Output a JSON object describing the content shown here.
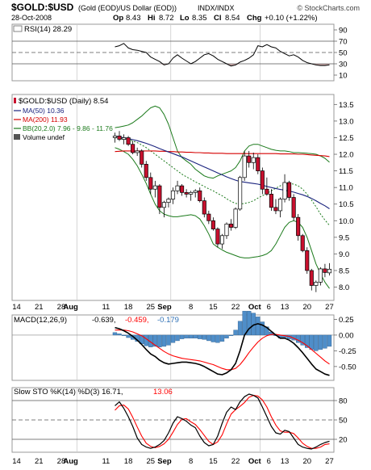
{
  "header": {
    "symbol": "$GOLD:$USD",
    "description": "(Gold (EOD)/US Dollar (EOD))",
    "exchange": "INDX/INDX",
    "watermark": "© StockCharts.com",
    "date": "28-Oct-2008",
    "op_label": "Op",
    "op": "8.43",
    "hi_label": "Hi",
    "hi": "8.72",
    "lo_label": "Lo",
    "lo": "8.35",
    "cl_label": "Cl",
    "cl": "8.54",
    "chg_label": "Chg",
    "chg": "+0.10 (+1.22%)"
  },
  "colors": {
    "frame": "#999999",
    "grid": "#cccccc",
    "up": "#ffffff",
    "down": "#c8102e",
    "ma50": "#1a237e",
    "ma200": "#d50000",
    "bb": "#1b7a1b",
    "macd": "#000000",
    "signal": "#ff0000",
    "hist": "#4f8ec9",
    "rsi_fill": "#b79a9a",
    "sto_k": "#000000",
    "sto_d": "#ff0000"
  },
  "chart_data": [
    {
      "type": "line",
      "name": "rsi",
      "legend": "RSI(14) 28.29",
      "ylim": [
        0,
        100
      ],
      "yticks": [
        "90",
        "70",
        "50",
        "30",
        "10"
      ],
      "ytick_values": [
        90,
        70,
        50,
        30,
        10
      ],
      "ref_lines": [
        70,
        50,
        30
      ],
      "values": [
        60,
        62,
        66,
        58,
        55,
        54,
        52,
        50,
        42,
        38,
        34,
        28,
        30,
        40,
        46,
        40,
        35,
        30,
        34,
        40,
        46,
        48,
        44,
        38,
        34,
        30,
        26,
        28,
        33,
        36,
        40,
        46,
        62,
        60,
        64,
        60,
        58,
        52,
        48,
        44,
        46,
        42,
        36,
        32,
        30,
        28,
        27,
        27,
        28
      ]
    },
    {
      "type": "candlestick",
      "name": "price",
      "legend": [
        "$GOLD:$USD (Daily) 8.54",
        "MA(50) 10.36",
        "MA(200) 11.93",
        "BB(20,2.0) 7.96 - 9.86 - 11.76",
        "Volume undef"
      ],
      "ylim": [
        7.6,
        13.8
      ],
      "yticks": [
        "13.5",
        "13.0",
        "12.5",
        "12.0",
        "11.5",
        "11.0",
        "10.5",
        "10.0",
        "9.5",
        "9.0",
        "8.5",
        "8.0"
      ],
      "ytick_values": [
        13.5,
        13.0,
        12.5,
        12.0,
        11.5,
        11.0,
        10.5,
        10.0,
        9.5,
        9.0,
        8.5,
        8.0
      ],
      "ohlc": [
        [
          12.5,
          12.65,
          12.35,
          12.55
        ],
        [
          12.55,
          12.7,
          12.4,
          12.45
        ],
        [
          12.45,
          12.6,
          12.3,
          12.5
        ],
        [
          12.5,
          12.55,
          12.25,
          12.3
        ],
        [
          12.3,
          12.4,
          12.0,
          12.05
        ],
        [
          12.05,
          12.2,
          11.95,
          12.1
        ],
        [
          12.1,
          12.15,
          11.6,
          11.7
        ],
        [
          11.7,
          11.8,
          11.2,
          11.3
        ],
        [
          11.3,
          11.45,
          10.8,
          10.95
        ],
        [
          10.95,
          11.2,
          10.7,
          11.05
        ],
        [
          11.05,
          11.1,
          10.2,
          10.4
        ],
        [
          10.4,
          10.6,
          10.1,
          10.55
        ],
        [
          10.55,
          10.7,
          10.4,
          10.65
        ],
        [
          10.65,
          11.0,
          10.5,
          10.9
        ],
        [
          10.9,
          11.2,
          10.8,
          11.05
        ],
        [
          11.05,
          11.1,
          10.75,
          10.85
        ],
        [
          10.85,
          10.95,
          10.7,
          10.8
        ],
        [
          10.8,
          10.9,
          10.6,
          10.85
        ],
        [
          10.85,
          10.95,
          10.7,
          10.9
        ],
        [
          10.9,
          11.0,
          10.55,
          10.6
        ],
        [
          10.6,
          10.7,
          10.1,
          10.2
        ],
        [
          10.2,
          10.3,
          9.9,
          10.0
        ],
        [
          10.0,
          10.1,
          9.7,
          9.75
        ],
        [
          9.75,
          9.8,
          9.2,
          9.3
        ],
        [
          9.3,
          9.6,
          9.15,
          9.55
        ],
        [
          9.55,
          9.95,
          9.45,
          9.9
        ],
        [
          9.9,
          10.05,
          9.7,
          9.8
        ],
        [
          9.8,
          10.4,
          9.75,
          10.35
        ],
        [
          10.35,
          11.35,
          10.3,
          11.3
        ],
        [
          11.3,
          12.1,
          11.2,
          11.95
        ],
        [
          11.95,
          12.1,
          11.6,
          11.75
        ],
        [
          11.75,
          12.05,
          11.55,
          11.9
        ],
        [
          11.9,
          12.0,
          11.4,
          11.5
        ],
        [
          11.5,
          11.6,
          10.8,
          10.95
        ],
        [
          10.95,
          11.3,
          10.75,
          10.8
        ],
        [
          10.8,
          10.95,
          10.3,
          10.4
        ],
        [
          10.4,
          10.65,
          10.2,
          10.3
        ],
        [
          10.3,
          10.7,
          10.1,
          10.65
        ],
        [
          10.65,
          11.4,
          10.55,
          11.15
        ],
        [
          11.15,
          11.2,
          10.6,
          10.7
        ],
        [
          10.7,
          10.8,
          10.0,
          10.1
        ],
        [
          10.1,
          10.2,
          9.4,
          9.55
        ],
        [
          9.55,
          9.6,
          9.05,
          9.1
        ],
        [
          9.1,
          9.2,
          8.4,
          8.5
        ],
        [
          8.5,
          8.55,
          7.9,
          8.05
        ],
        [
          8.05,
          8.2,
          7.85,
          8.15
        ],
        [
          8.15,
          8.6,
          8.05,
          8.55
        ],
        [
          8.55,
          8.7,
          8.3,
          8.44
        ],
        [
          8.43,
          8.72,
          8.35,
          8.54
        ]
      ],
      "ma50": [
        12.55,
        12.52,
        12.5,
        12.47,
        12.44,
        12.41,
        12.37,
        12.33,
        12.28,
        12.23,
        12.17,
        12.12,
        12.07,
        12.02,
        11.97,
        11.92,
        11.86,
        11.8,
        11.74,
        11.68,
        11.62,
        11.56,
        11.5,
        11.44,
        11.38,
        11.32,
        11.27,
        11.22,
        11.18,
        11.16,
        11.14,
        11.12,
        11.1,
        11.07,
        11.03,
        11.0,
        10.97,
        10.94,
        10.92,
        10.89,
        10.86,
        10.82,
        10.78,
        10.73,
        10.67,
        10.6,
        10.52,
        10.45,
        10.36
      ],
      "ma200": [
        12.08,
        12.09,
        12.1,
        12.1,
        12.1,
        12.1,
        12.1,
        12.1,
        12.1,
        12.1,
        12.09,
        12.09,
        12.08,
        12.08,
        12.07,
        12.07,
        12.06,
        12.06,
        12.05,
        12.05,
        12.04,
        12.04,
        12.03,
        12.03,
        12.03,
        12.02,
        12.02,
        12.02,
        12.02,
        12.02,
        12.02,
        12.02,
        12.02,
        12.02,
        12.02,
        12.02,
        12.02,
        12.01,
        12.01,
        12.01,
        12.01,
        12.0,
        12.0,
        11.99,
        11.98,
        11.97,
        11.96,
        11.95,
        11.93
      ],
      "bb_upper": [
        12.8,
        12.82,
        12.85,
        12.88,
        12.95,
        13.05,
        13.15,
        13.28,
        13.4,
        13.45,
        13.4,
        13.2,
        12.9,
        12.5,
        12.1,
        11.9,
        11.8,
        11.7,
        11.55,
        11.45,
        11.35,
        11.3,
        11.28,
        11.35,
        11.4,
        11.45,
        11.5,
        11.6,
        11.8,
        12.1,
        12.25,
        12.3,
        12.3,
        12.25,
        12.2,
        12.15,
        12.12,
        12.1,
        12.1,
        12.08,
        12.05,
        12.05,
        12.04,
        12.03,
        12.02,
        12.0,
        11.95,
        11.88,
        11.76
      ],
      "bb_mid": [
        12.5,
        12.48,
        12.46,
        12.44,
        12.4,
        12.35,
        12.28,
        12.2,
        12.1,
        12.0,
        11.9,
        11.8,
        11.7,
        11.6,
        11.5,
        11.4,
        11.32,
        11.25,
        11.17,
        11.1,
        11.03,
        10.96,
        10.9,
        10.82,
        10.75,
        10.66,
        10.58,
        10.52,
        10.5,
        10.52,
        10.55,
        10.6,
        10.68,
        10.75,
        10.82,
        10.9,
        10.98,
        11.05,
        11.1,
        11.12,
        11.1,
        11.05,
        10.95,
        10.8,
        10.62,
        10.42,
        10.2,
        10.02,
        9.86
      ],
      "bb_lower": [
        12.2,
        12.15,
        12.08,
        12.0,
        11.85,
        11.65,
        11.4,
        11.12,
        10.8,
        10.5,
        10.3,
        10.2,
        10.15,
        10.12,
        10.12,
        10.14,
        10.16,
        10.18,
        10.15,
        10.05,
        9.85,
        9.6,
        9.3,
        9.2,
        9.12,
        9.05,
        9.0,
        8.95,
        8.9,
        8.88,
        8.88,
        8.9,
        8.92,
        8.95,
        9.0,
        9.1,
        9.3,
        9.55,
        9.8,
        9.95,
        10.0,
        9.95,
        9.8,
        9.5,
        9.1,
        8.7,
        8.4,
        8.15,
        7.96
      ]
    },
    {
      "type": "line",
      "name": "macd",
      "legend_main": "MACD(12,26,9)",
      "legend_macd": "-0.639,",
      "legend_signal": "-0.459,",
      "legend_hist": "-0.179",
      "ylim": [
        -0.72,
        0.32
      ],
      "yticks": [
        "0.25",
        "0.00",
        "-0.25",
        "-0.50"
      ],
      "ytick_values": [
        0.25,
        0.0,
        -0.25,
        -0.5
      ],
      "macd": [
        0.12,
        0.1,
        0.07,
        0.03,
        -0.02,
        -0.08,
        -0.15,
        -0.23,
        -0.3,
        -0.34,
        -0.4,
        -0.44,
        -0.46,
        -0.45,
        -0.44,
        -0.43,
        -0.43,
        -0.44,
        -0.45,
        -0.47,
        -0.5,
        -0.54,
        -0.58,
        -0.62,
        -0.63,
        -0.6,
        -0.55,
        -0.45,
        -0.25,
        0.0,
        0.1,
        0.16,
        0.18,
        0.16,
        0.12,
        0.06,
        0.0,
        -0.05,
        -0.05,
        -0.08,
        -0.13,
        -0.2,
        -0.28,
        -0.37,
        -0.46,
        -0.54,
        -0.58,
        -0.62,
        -0.64
      ],
      "signal": [
        0.08,
        0.08,
        0.08,
        0.07,
        0.05,
        0.02,
        -0.01,
        -0.06,
        -0.11,
        -0.16,
        -0.21,
        -0.26,
        -0.3,
        -0.33,
        -0.35,
        -0.37,
        -0.38,
        -0.39,
        -0.4,
        -0.41,
        -0.43,
        -0.45,
        -0.47,
        -0.5,
        -0.53,
        -0.55,
        -0.55,
        -0.53,
        -0.47,
        -0.38,
        -0.28,
        -0.19,
        -0.11,
        -0.05,
        -0.01,
        0.01,
        0.01,
        0.0,
        -0.01,
        -0.02,
        -0.05,
        -0.08,
        -0.12,
        -0.17,
        -0.23,
        -0.29,
        -0.35,
        -0.41,
        -0.46
      ],
      "hist": [
        0.04,
        0.02,
        -0.01,
        -0.04,
        -0.07,
        -0.1,
        -0.14,
        -0.17,
        -0.19,
        -0.18,
        -0.19,
        -0.18,
        -0.16,
        -0.12,
        -0.09,
        -0.06,
        -0.05,
        -0.05,
        -0.05,
        -0.06,
        -0.07,
        -0.09,
        -0.11,
        -0.12,
        -0.1,
        -0.05,
        0.0,
        0.08,
        0.22,
        0.38,
        0.38,
        0.35,
        0.29,
        0.21,
        0.13,
        0.05,
        -0.01,
        -0.05,
        -0.04,
        -0.06,
        -0.08,
        -0.12,
        -0.16,
        -0.2,
        -0.23,
        -0.25,
        -0.23,
        -0.21,
        -0.18
      ]
    },
    {
      "type": "line",
      "name": "stochastic",
      "legend_main": "Slow STO %K(14) %D(3) 16.71,",
      "legend_d": "13.06",
      "ylim": [
        0,
        100
      ],
      "yticks": [
        "80",
        "50",
        "20"
      ],
      "ytick_values": [
        80,
        50,
        20
      ],
      "ref_lines": [
        80,
        50,
        20
      ],
      "k": [
        72,
        78,
        68,
        55,
        40,
        22,
        12,
        8,
        6,
        8,
        12,
        18,
        30,
        45,
        55,
        52,
        48,
        42,
        38,
        25,
        15,
        10,
        12,
        25,
        45,
        62,
        70,
        66,
        78,
        86,
        90,
        88,
        84,
        70,
        55,
        40,
        30,
        28,
        34,
        32,
        22,
        12,
        8,
        6,
        5,
        8,
        12,
        15,
        17
      ],
      "d": [
        65,
        72,
        73,
        67,
        54,
        39,
        25,
        14,
        9,
        7,
        9,
        13,
        20,
        31,
        43,
        51,
        52,
        47,
        43,
        35,
        26,
        17,
        12,
        16,
        27,
        44,
        59,
        66,
        71,
        77,
        85,
        88,
        87,
        81,
        70,
        55,
        42,
        33,
        31,
        31,
        29,
        22,
        14,
        9,
        6,
        6,
        8,
        12,
        13
      ]
    }
  ],
  "xaxis": {
    "labels": [
      "14",
      "21",
      "28",
      "Aug",
      "11",
      "18",
      "25",
      "Sep",
      "8",
      "15",
      "22",
      "Oct",
      "6",
      "13",
      "20",
      "27"
    ],
    "bold": [
      false,
      false,
      false,
      true,
      false,
      false,
      false,
      true,
      false,
      false,
      false,
      true,
      false,
      false,
      false,
      false
    ],
    "label_days": [
      1,
      6,
      11,
      14,
      21,
      26,
      31,
      35,
      40,
      45,
      50,
      55,
      56,
      61,
      66,
      71
    ],
    "label_offsets": [
      0,
      0,
      0,
      -5,
      0,
      0,
      0,
      -5,
      0,
      0,
      0,
      -4,
      8,
      0,
      0,
      0
    ],
    "gridlines_after": [
      14,
      35,
      55
    ],
    "first_day": 0,
    "last_day": 72
  }
}
